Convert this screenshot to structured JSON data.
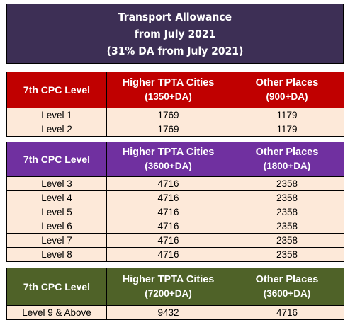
{
  "banner": {
    "line1": "Transport Allowance",
    "line2": "from July 2021",
    "line3": "(31% DA from July 2021)"
  },
  "tables": [
    {
      "header": {
        "col1": "7th CPC Level",
        "col2_title": "Higher TPTA Cities",
        "col2_sub": "(1350+DA)",
        "col3_title": "Other Places",
        "col3_sub": "(900+DA)"
      },
      "rows": [
        {
          "level": "Level 1",
          "higher": "1769",
          "other": "1179"
        },
        {
          "level": "Level 2",
          "higher": "1769",
          "other": "1179"
        }
      ],
      "color": "#c00000"
    },
    {
      "header": {
        "col1": "7th CPC Level",
        "col2_title": "Higher TPTA Cities",
        "col2_sub": "(3600+DA)",
        "col3_title": "Other Places",
        "col3_sub": "(1800+DA)"
      },
      "rows": [
        {
          "level": "Level 3",
          "higher": "4716",
          "other": "2358"
        },
        {
          "level": "Level 4",
          "higher": "4716",
          "other": "2358"
        },
        {
          "level": "Level 5",
          "higher": "4716",
          "other": "2358"
        },
        {
          "level": "Level 6",
          "higher": "4716",
          "other": "2358"
        },
        {
          "level": "Level 7",
          "higher": "4716",
          "other": "2358"
        },
        {
          "level": "Level 8",
          "higher": "4716",
          "other": "2358"
        }
      ],
      "color": "#7030a0"
    },
    {
      "header": {
        "col1": "7th CPC Level",
        "col2_title": "Higher TPTA Cities",
        "col2_sub": "(7200+DA)",
        "col3_title": "Other Places",
        "col3_sub": "(3600+DA)"
      },
      "rows": [
        {
          "level": "Level 9 & Above",
          "higher": "9432",
          "other": "4716"
        }
      ],
      "color": "#4f6228"
    }
  ]
}
